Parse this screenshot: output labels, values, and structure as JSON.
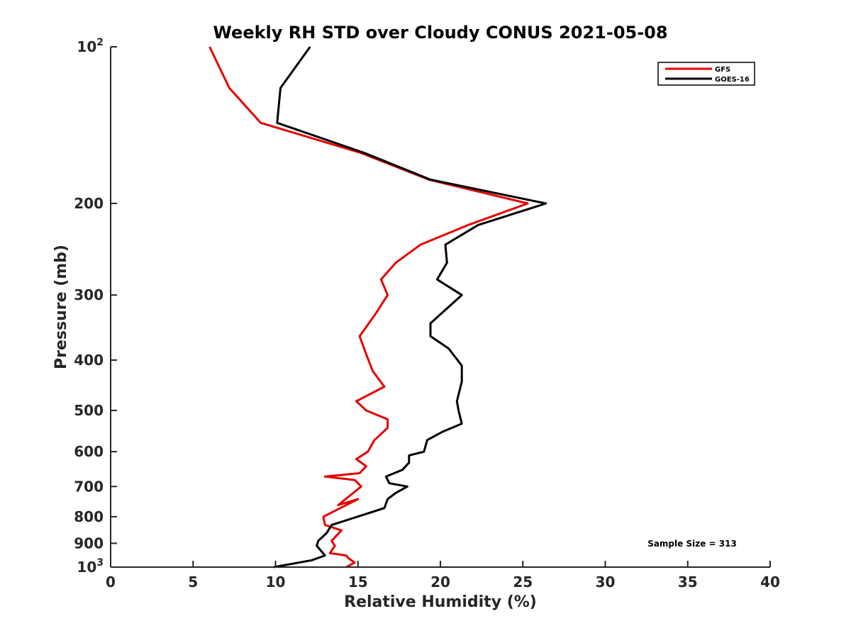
{
  "chart_data": {
    "type": "line",
    "title": "Weekly RH STD over Cloudy CONUS 2021-05-08",
    "xlabel": "Relative Humidity (%)",
    "ylabel": "Pressure (mb)",
    "xlim": [
      0,
      40
    ],
    "ylim": [
      100,
      1000
    ],
    "y_scale": "log",
    "y_reversed": true,
    "grid": false,
    "legend_position": "top-right",
    "x_ticks": [
      "0",
      "5",
      "10",
      "15",
      "20",
      "25",
      "30",
      "35",
      "40"
    ],
    "y_ticks": [
      {
        "value": 100,
        "base": "10",
        "exp": "2"
      },
      {
        "value": 200,
        "label": "200"
      },
      {
        "value": 300,
        "label": "300"
      },
      {
        "value": 400,
        "label": "400"
      },
      {
        "value": 500,
        "label": "500"
      },
      {
        "value": 600,
        "label": "600"
      },
      {
        "value": 700,
        "label": "700"
      },
      {
        "value": 800,
        "label": "800"
      },
      {
        "value": 900,
        "label": "900"
      },
      {
        "value": 1000,
        "base": "10",
        "exp": "3"
      }
    ],
    "series": [
      {
        "name": "GFS",
        "color": "#e60000",
        "points": [
          [
            6.0,
            100
          ],
          [
            7.2,
            120
          ],
          [
            9.1,
            140
          ],
          [
            15.2,
            160
          ],
          [
            19.3,
            180
          ],
          [
            25.3,
            200
          ],
          [
            21.7,
            220
          ],
          [
            18.8,
            240
          ],
          [
            17.3,
            260
          ],
          [
            16.4,
            280
          ],
          [
            16.8,
            300
          ],
          [
            16.1,
            325
          ],
          [
            15.1,
            360
          ],
          [
            15.5,
            390
          ],
          [
            15.9,
            420
          ],
          [
            16.6,
            450
          ],
          [
            14.9,
            480
          ],
          [
            15.5,
            500
          ],
          [
            16.8,
            520
          ],
          [
            16.8,
            540
          ],
          [
            16.0,
            570
          ],
          [
            15.6,
            600
          ],
          [
            14.9,
            620
          ],
          [
            15.5,
            640
          ],
          [
            15.1,
            660
          ],
          [
            13.0,
            670
          ],
          [
            14.8,
            680
          ],
          [
            15.2,
            700
          ],
          [
            13.8,
            760
          ],
          [
            15.0,
            740
          ],
          [
            12.9,
            800
          ],
          [
            13.0,
            830
          ],
          [
            14.0,
            850
          ],
          [
            13.4,
            890
          ],
          [
            13.6,
            910
          ],
          [
            13.3,
            940
          ],
          [
            14.3,
            950
          ],
          [
            14.4,
            960
          ],
          [
            14.8,
            980
          ],
          [
            14.3,
            1000
          ]
        ]
      },
      {
        "name": "GOES-16",
        "color": "#000000",
        "points": [
          [
            12.1,
            100
          ],
          [
            10.3,
            120
          ],
          [
            10.1,
            140
          ],
          [
            15.4,
            160
          ],
          [
            19.4,
            180
          ],
          [
            26.4,
            200
          ],
          [
            22.3,
            220
          ],
          [
            20.3,
            240
          ],
          [
            20.4,
            260
          ],
          [
            19.8,
            280
          ],
          [
            21.3,
            300
          ],
          [
            19.4,
            340
          ],
          [
            19.4,
            360
          ],
          [
            20.5,
            380
          ],
          [
            21.3,
            410
          ],
          [
            21.3,
            440
          ],
          [
            21.0,
            480
          ],
          [
            21.1,
            500
          ],
          [
            21.3,
            530
          ],
          [
            20.1,
            550
          ],
          [
            19.2,
            570
          ],
          [
            19.0,
            600
          ],
          [
            18.1,
            610
          ],
          [
            18.1,
            630
          ],
          [
            17.7,
            650
          ],
          [
            16.7,
            670
          ],
          [
            16.9,
            690
          ],
          [
            18.0,
            700
          ],
          [
            17.3,
            720
          ],
          [
            16.8,
            740
          ],
          [
            16.6,
            770
          ],
          [
            13.4,
            830
          ],
          [
            13.1,
            860
          ],
          [
            12.6,
            890
          ],
          [
            12.5,
            910
          ],
          [
            13.0,
            950
          ],
          [
            12.2,
            970
          ],
          [
            9.9,
            1000
          ]
        ]
      }
    ],
    "annotation": "Sample Size = 313"
  }
}
